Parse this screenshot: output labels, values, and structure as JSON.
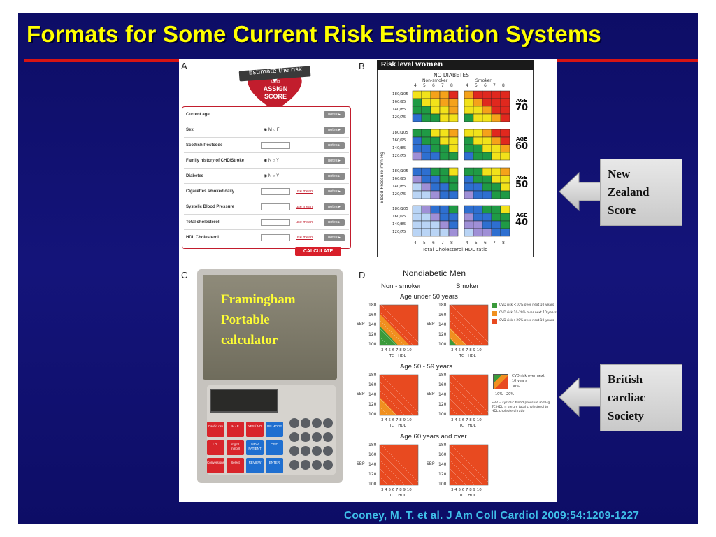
{
  "slide": {
    "title": "Formats for Some Current Risk Estimation Systems",
    "citation": "Cooney, M. T. et al. J Am Coll Cardiol 2009;54:1209-1227"
  },
  "colors": {
    "background": "#0d0d66",
    "title": "#ffff00",
    "rule": "#d71414",
    "citation": "#3fbfe8",
    "assign_red": "#d81f2a"
  },
  "panel_a": {
    "label": "A",
    "banner": "Estimate the risk",
    "logo_using": "using",
    "logo_line1": "ASSIGN",
    "logo_line2": "SCORE",
    "rows": [
      {
        "label": "Current age",
        "kind": "none",
        "notes": "notes ▸"
      },
      {
        "label": "Sex",
        "kind": "radio",
        "options": "◉ M  ○ F",
        "notes": "notes ▸"
      },
      {
        "label": "Scottish Postcode",
        "kind": "box",
        "notes": "notes ▸"
      },
      {
        "label": "Family history of CHD/Stroke",
        "kind": "radio",
        "options": "◉ N  ○ Y",
        "notes": "notes ▸"
      },
      {
        "label": "Diabetes",
        "kind": "radio",
        "options": "◉ N  ○ Y",
        "notes": "notes ▸"
      },
      {
        "label": "Cigarettes smoked daily",
        "kind": "box",
        "use": "use mean",
        "notes": "notes ▸"
      },
      {
        "label": "Systolic Blood Pressure",
        "kind": "box",
        "use": "use mean",
        "notes": "notes ▸"
      },
      {
        "label": "Total cholesterol",
        "kind": "box",
        "use": "use mean",
        "notes": "notes ▸"
      },
      {
        "label": "HDL Cholesterol",
        "kind": "box",
        "use": "use mean",
        "notes": "notes ▸"
      }
    ],
    "calculate_label": "CALCULATE"
  },
  "panel_b": {
    "label": "B",
    "header_prefix": "Risk level ",
    "header_bold": "women",
    "subtitle": "NO DIABETES",
    "col_nonsmoker": "Non-smoker",
    "col_smoker": "Smoker",
    "tc_ticks": [
      "4",
      "5",
      "6",
      "7",
      "8"
    ],
    "bp_rows": [
      "180/105",
      "160/95",
      "140/85",
      "120/75"
    ],
    "age_prefix": "AGE",
    "ages": [
      "70",
      "60",
      "50",
      "40"
    ],
    "y_axis": "Blood Pressure mm Hg",
    "x_axis": "Total Cholesterol:HDL ratio"
  },
  "panel_c": {
    "label": "C",
    "overlay_lines": [
      "Framingham",
      "Portable",
      "calculator"
    ],
    "calc_buttons": [
      "Cardio risk",
      "M / F",
      "YES / NO",
      "ON MODE",
      "LDL",
      "mg/dl mmol/l",
      "NEW PATIENT",
      "CE/C",
      "Conversions",
      "Select",
      "REVIEW",
      "ENTER"
    ]
  },
  "panel_d": {
    "label": "D",
    "title": "Nondiabetic Men",
    "col_nonsmoker": "Non - smoker",
    "col_smoker": "Smoker",
    "groups": [
      "Age under 50 years",
      "Age 50 - 59 years",
      "Age 60 years and over"
    ],
    "y_label": "SBP",
    "y_ticks": [
      "180",
      "160",
      "140",
      "120",
      "100"
    ],
    "x_ticks": "3 4 5 6 7 8 9 10",
    "x_label": "TC : HDL",
    "legend": [
      "CVD risk <10% over next 10 years",
      "CVD risk 10-20% over next 10 years",
      "CVD risk >20% over next 10 years"
    ],
    "legend2_title": "CVD risk over next 10 years",
    "legend2_30": "30%",
    "legend2_10": "10%",
    "legend2_20": "20%",
    "legend2_note": "SBP = systolic blood pressure mmHg TC:HDL = serum total cholesterol to HDL cholesterol ratio"
  },
  "callouts": {
    "nz": [
      "New",
      "Zealand",
      "Score"
    ],
    "british": [
      "British",
      "cardiac",
      "Society"
    ]
  }
}
